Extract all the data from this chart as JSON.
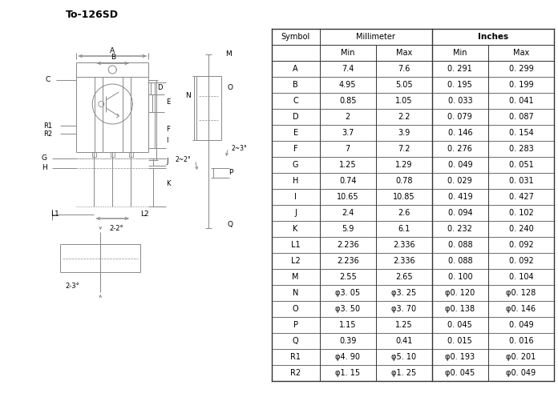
{
  "title": "To-126SD",
  "bg_color": "#ffffff",
  "rows": [
    [
      "A",
      "7.4",
      "7.6",
      "0. 291",
      "0. 299"
    ],
    [
      "B",
      "4.95",
      "5.05",
      "0. 195",
      "0. 199"
    ],
    [
      "C",
      "0.85",
      "1.05",
      "0. 033",
      "0. 041"
    ],
    [
      "D",
      "2",
      "2.2",
      "0. 079",
      "0. 087"
    ],
    [
      "E",
      "3.7",
      "3.9",
      "0. 146",
      "0. 154"
    ],
    [
      "F",
      "7",
      "7.2",
      "0. 276",
      "0. 283"
    ],
    [
      "G",
      "1.25",
      "1.29",
      "0. 049",
      "0. 051"
    ],
    [
      "H",
      "0.74",
      "0.78",
      "0. 029",
      "0. 031"
    ],
    [
      "I",
      "10.65",
      "10.85",
      "0. 419",
      "0. 427"
    ],
    [
      "J",
      "2.4",
      "2.6",
      "0. 094",
      "0. 102"
    ],
    [
      "K",
      "5.9",
      "6.1",
      "0. 232",
      "0. 240"
    ],
    [
      "L1",
      "2.236",
      "2.336",
      "0. 088",
      "0. 092"
    ],
    [
      "L2",
      "2.236",
      "2.336",
      "0. 088",
      "0. 092"
    ],
    [
      "M",
      "2.55",
      "2.65",
      "0. 100",
      "0. 104"
    ],
    [
      "N",
      "φ3. 05",
      "φ3. 25",
      "φ0. 120",
      "φ0. 128"
    ],
    [
      "O",
      "φ3. 50",
      "φ3. 70",
      "φ0. 138",
      "φ0. 146"
    ],
    [
      "P",
      "1.15",
      "1.25",
      "0. 045",
      "0. 049"
    ],
    [
      "Q",
      "0.39",
      "0.41",
      "0. 015",
      "0. 016"
    ],
    [
      "R1",
      "φ4. 90",
      "φ5. 10",
      "φ0. 193",
      "φ0. 201"
    ],
    [
      "R2",
      "φ1. 15",
      "φ1. 25",
      "φ0. 045",
      "φ0. 049"
    ]
  ],
  "line_color": "#888888",
  "text_color": "#000000"
}
